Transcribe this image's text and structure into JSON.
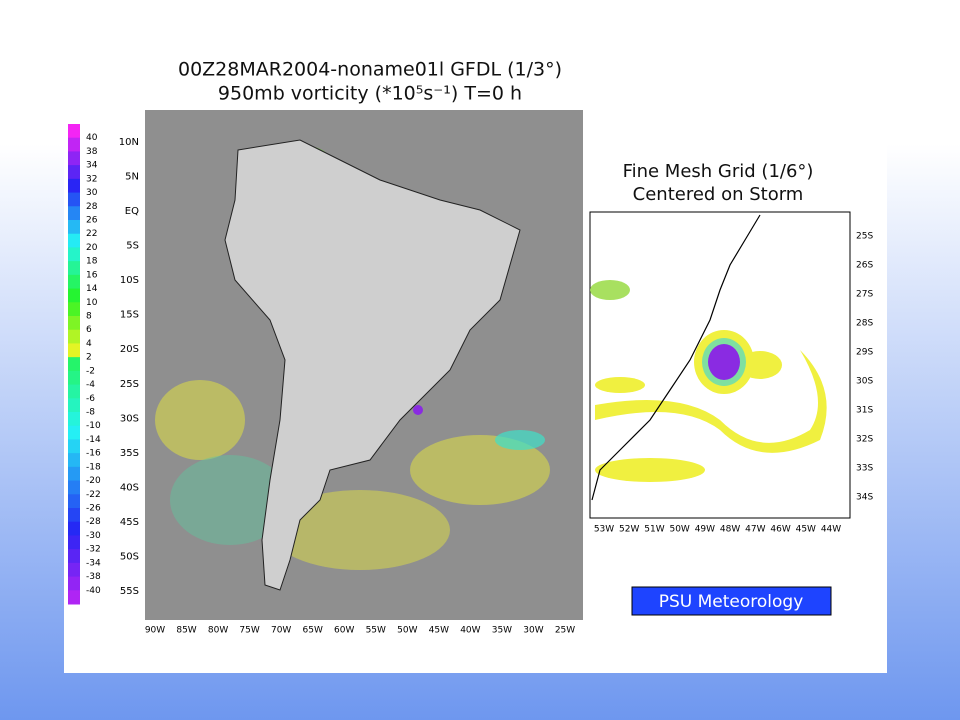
{
  "title": [
    "00Z28MAR2004-noname01l GFDL (1/3°)",
    "950mb vorticity (*10⁵s⁻¹) T=0 h"
  ],
  "colorbar": {
    "labels": [
      40,
      38,
      34,
      32,
      30,
      28,
      26,
      22,
      20,
      18,
      16,
      14,
      10,
      8,
      6,
      4,
      2,
      -2,
      -4,
      -6,
      -8,
      -10,
      -14,
      -16,
      -18,
      -20,
      -22,
      -26,
      -28,
      -30,
      -32,
      -34,
      -38,
      -40
    ]
  },
  "main_map": {
    "lat_labels": [
      "10N",
      "5N",
      "EQ",
      "5S",
      "10S",
      "15S",
      "20S",
      "25S",
      "30S",
      "35S",
      "40S",
      "45S",
      "50S",
      "55S"
    ],
    "lon_labels": [
      "90W",
      "85W",
      "80W",
      "75W",
      "70W",
      "65W",
      "60W",
      "55W",
      "50W",
      "45W",
      "40W",
      "35W",
      "30W",
      "25W"
    ]
  },
  "inset": {
    "title": [
      "Fine Mesh Grid (1/6°)",
      "Centered on Storm"
    ],
    "lat_labels": [
      "25S",
      "26S",
      "27S",
      "28S",
      "29S",
      "30S",
      "31S",
      "32S",
      "33S",
      "34S"
    ],
    "lon_labels": [
      "53W",
      "52W",
      "51W",
      "50W",
      "49W",
      "48W",
      "47W",
      "46W",
      "45W",
      "44W"
    ]
  },
  "credit": "PSU Meteorology"
}
